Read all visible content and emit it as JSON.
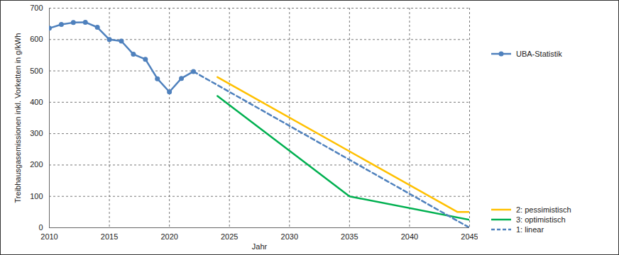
{
  "chart_data": {
    "type": "line",
    "x_label": "Jahr",
    "y_label": "Treibhausgasemissionen inkl. Vorketten in g/kWh",
    "xlim": [
      2010,
      2045
    ],
    "xticks": [
      2010,
      2015,
      2020,
      2025,
      2030,
      2035,
      2040,
      2045
    ],
    "ylim": [
      0,
      700
    ],
    "yticks": [
      0,
      100,
      200,
      300,
      400,
      500,
      600,
      700
    ],
    "grid": true,
    "legend": "right",
    "series": [
      {
        "name": "UBA-Statistik",
        "color": "#4f81bd",
        "marker": "circle",
        "line_style": "solid",
        "x": [
          2010,
          2011,
          2012,
          2013,
          2014,
          2015,
          2016,
          2017,
          2018,
          2019,
          2020,
          2021,
          2022
        ],
        "values": [
          636,
          648,
          654,
          655,
          639,
          600,
          595,
          553,
          537,
          475,
          433,
          476,
          498
        ]
      },
      {
        "name": "2: pessimistisch",
        "color": "#ffc000",
        "line_style": "solid",
        "x": [
          2024,
          2044,
          2045
        ],
        "values": [
          480,
          50,
          50
        ]
      },
      {
        "name": "3: optimistisch",
        "color": "#00b050",
        "line_style": "solid",
        "x": [
          2024,
          2035,
          2045
        ],
        "values": [
          420,
          100,
          25
        ]
      },
      {
        "name": "1: linear",
        "color": "#4f81bd",
        "line_style": "dashed",
        "x": [
          2022,
          2045
        ],
        "values": [
          498,
          0
        ]
      }
    ]
  }
}
